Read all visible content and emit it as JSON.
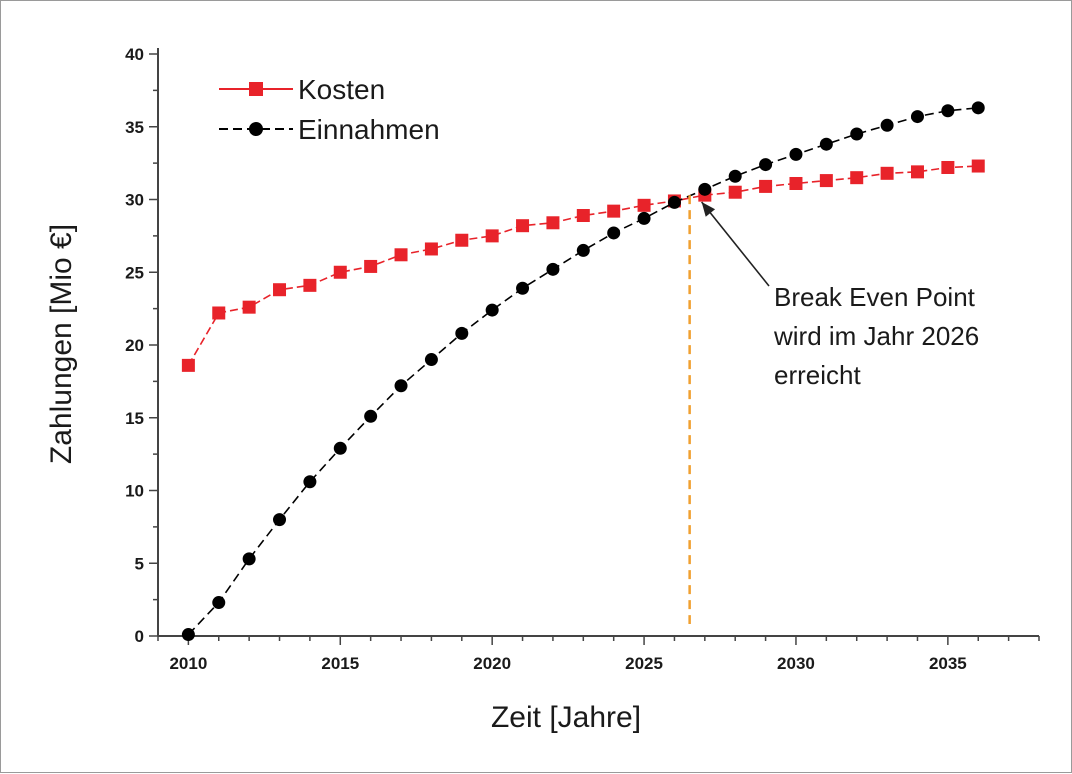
{
  "chart_data": {
    "type": "line",
    "xlabel": "Zeit [Jahre]",
    "ylabel": "Zahlungen [Mio €]",
    "xlim": [
      2009,
      2038
    ],
    "ylim": [
      0,
      40
    ],
    "x_ticks": [
      2010,
      2015,
      2020,
      2025,
      2030,
      2035
    ],
    "y_ticks": [
      0,
      5,
      10,
      15,
      20,
      25,
      30,
      35,
      40
    ],
    "grid": false,
    "legend_position": "top-left",
    "x": [
      2010,
      2011,
      2012,
      2013,
      2014,
      2015,
      2016,
      2017,
      2018,
      2019,
      2020,
      2021,
      2022,
      2023,
      2024,
      2025,
      2026,
      2027,
      2028,
      2029,
      2030,
      2031,
      2032,
      2033,
      2034,
      2035,
      2036
    ],
    "series": [
      {
        "name": "Kosten",
        "color": "#e8232a",
        "marker": "square",
        "values": [
          18.6,
          22.2,
          22.6,
          23.8,
          24.1,
          25.0,
          25.4,
          26.2,
          26.6,
          27.2,
          27.5,
          28.2,
          28.4,
          28.9,
          29.2,
          29.6,
          29.9,
          30.3,
          30.5,
          30.9,
          31.1,
          31.3,
          31.5,
          31.8,
          31.9,
          32.2,
          32.3
        ]
      },
      {
        "name": "Einnahmen",
        "color": "#000000",
        "marker": "circle",
        "values": [
          0.1,
          2.3,
          5.3,
          8.0,
          10.6,
          12.9,
          15.1,
          17.2,
          19.0,
          20.8,
          22.4,
          23.9,
          25.2,
          26.5,
          27.7,
          28.7,
          29.8,
          30.7,
          31.6,
          32.4,
          33.1,
          33.8,
          34.5,
          35.1,
          35.7,
          36.1,
          36.3
        ]
      }
    ],
    "break_even": {
      "x": 2026.5,
      "line_color": "#f0a030",
      "annotation": [
        "Break Even Point",
        "wird im Jahr 2026",
        "erreicht"
      ],
      "label_x": 2027.3,
      "label_y": 30.1
    }
  }
}
